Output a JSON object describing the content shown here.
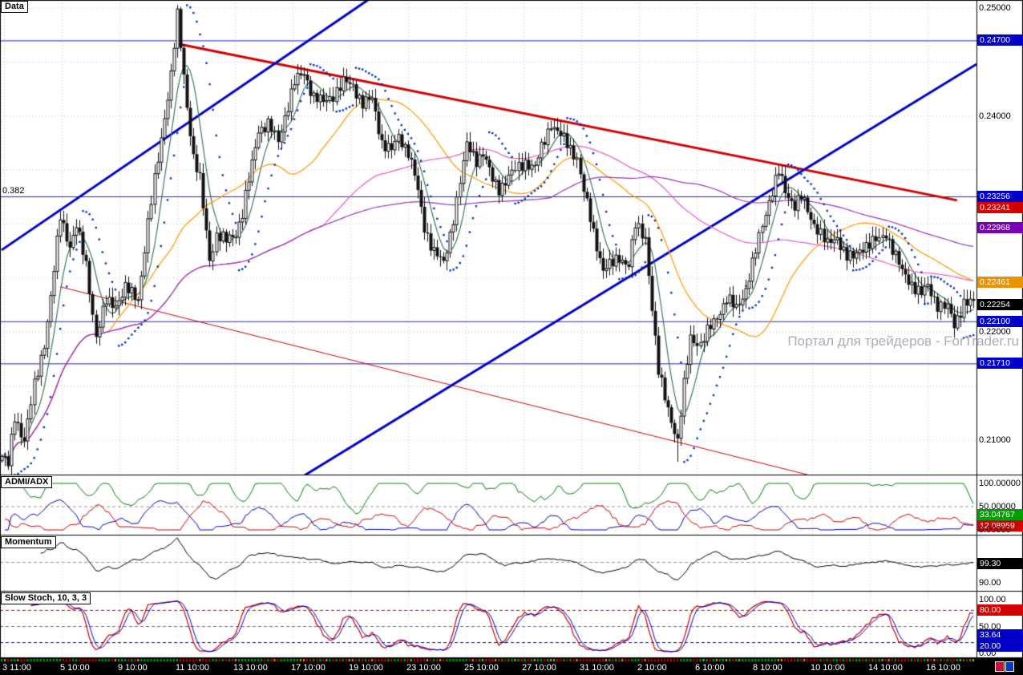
{
  "watermark": "Портал для трейдеров - ForTrader.ru",
  "panels": {
    "main": {
      "title": "Data",
      "fibo_label": "0.382"
    },
    "adx": {
      "title": "ADMI/ADX"
    },
    "momentum": {
      "title": "Momentum"
    },
    "stoch": {
      "title": "Slow Stoch, 10, 3, 3"
    }
  },
  "price_axis": {
    "labels": [
      {
        "text": "0.25000",
        "value": 0.25,
        "style": "plain"
      },
      {
        "text": "0.24700",
        "value": 0.247,
        "style": "box",
        "color": "#0000C8"
      },
      {
        "text": "0.24000",
        "value": 0.24,
        "style": "plain"
      },
      {
        "text": "0.23256",
        "value": 0.23256,
        "style": "box",
        "color": "#0000C8"
      },
      {
        "text": "0.23241",
        "value": 0.23241,
        "style": "box",
        "color": "#D40000"
      },
      {
        "text": "0.22968",
        "value": 0.22968,
        "style": "box",
        "color": "#7A00B4"
      },
      {
        "text": "0.22461",
        "value": 0.22461,
        "style": "box",
        "color": "#E89400"
      },
      {
        "text": "0.22254",
        "value": 0.22254,
        "style": "box",
        "color": "#000000"
      },
      {
        "text": "0.22100",
        "value": 0.221,
        "style": "box",
        "color": "#0000C8"
      },
      {
        "text": "0.22000",
        "value": 0.22,
        "style": "plain"
      },
      {
        "text": "0.21710",
        "value": 0.2171,
        "style": "box",
        "color": "#0000C8"
      },
      {
        "text": "0.21000",
        "value": 0.21,
        "style": "plain"
      }
    ]
  },
  "adx_axis": {
    "labels": [
      {
        "text": "100.00000",
        "value": 100,
        "style": "plain"
      },
      {
        "text": "50.00000",
        "value": 50,
        "style": "plain"
      },
      {
        "text": "33.04767",
        "value": 33.04767,
        "style": "box",
        "color": "#00A000"
      },
      {
        "text": "12.08959",
        "value": 12.08959,
        "style": "box",
        "color": "#D40000"
      },
      {
        "text": "0.00000",
        "value": 0,
        "style": "plain"
      }
    ]
  },
  "momentum_axis": {
    "labels": [
      {
        "text": "99.30",
        "value": 99.3,
        "style": "box",
        "color": "#000000"
      },
      {
        "text": "90.00",
        "value": 90,
        "style": "plain"
      }
    ]
  },
  "stoch_axis": {
    "labels": [
      {
        "text": "100.00",
        "value": 100,
        "style": "plain"
      },
      {
        "text": "80.00",
        "value": 80,
        "style": "box",
        "color": "#D40000"
      },
      {
        "text": "50.00",
        "value": 50,
        "style": "plain"
      },
      {
        "text": "33.64",
        "value": 33.64,
        "style": "box",
        "color": "#0000C8"
      },
      {
        "text": "20.00",
        "value": 20,
        "style": "box",
        "color": "#0000C8"
      },
      {
        "text": "0.00",
        "value": 0,
        "style": "plain"
      }
    ]
  },
  "time_axis": {
    "labels": [
      {
        "text": "3 11:00"
      },
      {
        "text": "5 10:00"
      },
      {
        "text": "9 10:00"
      },
      {
        "text": "11 10:00"
      },
      {
        "text": "13 10:00"
      },
      {
        "text": "17 10:00"
      },
      {
        "text": "19 10:00"
      },
      {
        "text": "23 10:00"
      },
      {
        "text": "25 10:00"
      },
      {
        "text": "27 10:00"
      },
      {
        "text": "31 10:00"
      },
      {
        "text": "2 10:00"
      },
      {
        "text": "6 10:00"
      },
      {
        "text": "8 10:00"
      },
      {
        "text": "10 10:00"
      },
      {
        "text": "14 10:00"
      },
      {
        "text": "16 10:00"
      }
    ]
  },
  "chart_data": {
    "type": "candlestick",
    "title": "Data",
    "num_bars": 300,
    "y_axis": {
      "min": 0.206813,
      "max": 0.250742
    },
    "last_price": 0.22254,
    "grid_prices": [
      0.25,
      0.245,
      0.24,
      0.235,
      0.23,
      0.225,
      0.22,
      0.215,
      0.21
    ],
    "horizontal_levels": [
      {
        "price": 0.247,
        "color": "#2222CC"
      },
      {
        "price": 0.23256,
        "color": "#2222CC",
        "label": "0.382"
      },
      {
        "price": 0.221,
        "color": "#2222CC"
      },
      {
        "price": 0.2171,
        "color": "#2222CC"
      }
    ],
    "trendlines": [
      {
        "name": "descending-resistance",
        "color": "#D40000",
        "width": 3,
        "p1": [
          54,
          0.2467
        ],
        "p2": [
          294,
          0.2322
        ]
      },
      {
        "name": "lower-channel",
        "color": "#D40000",
        "width": 1,
        "p1": [
          18,
          0.2242
        ],
        "p2": [
          248,
          0.2068
        ]
      },
      {
        "name": "ascending-support-left",
        "color": "#0000C8",
        "width": 3,
        "p1": [
          0,
          0.2276
        ],
        "p2": [
          113,
          0.2508
        ]
      },
      {
        "name": "ascending-support-right",
        "color": "#0000C8",
        "width": 3,
        "p1": [
          93,
          0.2067
        ],
        "p2": [
          300,
          0.2448
        ]
      }
    ],
    "moving_averages": [
      {
        "period": 7,
        "color": "#3A7A5A"
      },
      {
        "period": 34,
        "color": "#FF9900"
      },
      {
        "period": 100,
        "color": "#E55CC5"
      },
      {
        "period": 170,
        "color": "#9933BB"
      }
    ],
    "parabolic_sar": {
      "step": 0.02,
      "max": 0.2,
      "color": "#0033CC"
    },
    "spikes": [
      {
        "bar": 54,
        "high": 0.2497
      },
      {
        "bar": 208,
        "low": 0.208
      },
      {
        "bar": 3,
        "low": 0.207
      }
    ],
    "price_path": [
      [
        0,
        0.2085
      ],
      [
        2,
        0.2077
      ],
      [
        4,
        0.2122
      ],
      [
        7,
        0.21
      ],
      [
        10,
        0.215
      ],
      [
        13,
        0.219
      ],
      [
        15,
        0.2232
      ],
      [
        18,
        0.2307
      ],
      [
        21,
        0.228
      ],
      [
        23,
        0.2298
      ],
      [
        26,
        0.2262
      ],
      [
        29,
        0.2196
      ],
      [
        32,
        0.2228
      ],
      [
        35,
        0.2226
      ],
      [
        38,
        0.224
      ],
      [
        42,
        0.2231
      ],
      [
        45,
        0.23
      ],
      [
        48,
        0.236
      ],
      [
        50,
        0.24
      ],
      [
        52,
        0.2438
      ],
      [
        54,
        0.2492
      ],
      [
        55,
        0.2465
      ],
      [
        57,
        0.241
      ],
      [
        59,
        0.2362
      ],
      [
        61,
        0.234
      ],
      [
        64,
        0.2268
      ],
      [
        66,
        0.229
      ],
      [
        69,
        0.2284
      ],
      [
        72,
        0.2292
      ],
      [
        74,
        0.231
      ],
      [
        77,
        0.2355
      ],
      [
        79,
        0.2388
      ],
      [
        82,
        0.2392
      ],
      [
        85,
        0.2376
      ],
      [
        87,
        0.24
      ],
      [
        90,
        0.2431
      ],
      [
        93,
        0.244
      ],
      [
        96,
        0.2418
      ],
      [
        99,
        0.2412
      ],
      [
        102,
        0.242
      ],
      [
        105,
        0.2431
      ],
      [
        108,
        0.2428
      ],
      [
        111,
        0.2412
      ],
      [
        114,
        0.2415
      ],
      [
        117,
        0.2376
      ],
      [
        120,
        0.2368
      ],
      [
        122,
        0.238
      ],
      [
        125,
        0.2368
      ],
      [
        127,
        0.2345
      ],
      [
        130,
        0.2296
      ],
      [
        133,
        0.2276
      ],
      [
        136,
        0.2262
      ],
      [
        138,
        0.229
      ],
      [
        141,
        0.234
      ],
      [
        143,
        0.2372
      ],
      [
        146,
        0.236
      ],
      [
        148,
        0.2366
      ],
      [
        151,
        0.234
      ],
      [
        153,
        0.2333
      ],
      [
        156,
        0.2344
      ],
      [
        159,
        0.2352
      ],
      [
        161,
        0.2358
      ],
      [
        164,
        0.2352
      ],
      [
        166,
        0.237
      ],
      [
        169,
        0.2394
      ],
      [
        171,
        0.2385
      ],
      [
        174,
        0.2374
      ],
      [
        177,
        0.2362
      ],
      [
        179,
        0.233
      ],
      [
        182,
        0.2292
      ],
      [
        185,
        0.2258
      ],
      [
        188,
        0.2263
      ],
      [
        190,
        0.227
      ],
      [
        193,
        0.2262
      ],
      [
        195,
        0.2298
      ],
      [
        198,
        0.2288
      ],
      [
        200,
        0.2222
      ],
      [
        202,
        0.2162
      ],
      [
        205,
        0.213
      ],
      [
        208,
        0.2098
      ],
      [
        210,
        0.215
      ],
      [
        212,
        0.2196
      ],
      [
        215,
        0.2188
      ],
      [
        218,
        0.2205
      ],
      [
        220,
        0.2215
      ],
      [
        223,
        0.223
      ],
      [
        226,
        0.2222
      ],
      [
        229,
        0.224
      ],
      [
        231,
        0.2262
      ],
      [
        234,
        0.23
      ],
      [
        236,
        0.2322
      ],
      [
        239,
        0.2348
      ],
      [
        241,
        0.233
      ],
      [
        244,
        0.2318
      ],
      [
        246,
        0.2325
      ],
      [
        249,
        0.2305
      ],
      [
        252,
        0.2292
      ],
      [
        254,
        0.228
      ],
      [
        257,
        0.2288
      ],
      [
        260,
        0.227
      ],
      [
        262,
        0.2268
      ],
      [
        265,
        0.228
      ],
      [
        267,
        0.2282
      ],
      [
        270,
        0.2285
      ],
      [
        272,
        0.2292
      ],
      [
        275,
        0.227
      ],
      [
        277,
        0.2255
      ],
      [
        280,
        0.2245
      ],
      [
        283,
        0.2235
      ],
      [
        285,
        0.2242
      ],
      [
        288,
        0.2226
      ],
      [
        291,
        0.2222
      ],
      [
        293,
        0.2206
      ],
      [
        296,
        0.2228
      ],
      [
        299,
        0.2226
      ]
    ],
    "indicators": [
      {
        "id": "adx",
        "title": "ADMI/ADX",
        "period": 7,
        "range": [
          0,
          100
        ],
        "lines": [
          {
            "name": "ADX",
            "color": "#008000"
          },
          {
            "name": "plus-DI",
            "color": "#0000CC"
          },
          {
            "name": "minus-DI",
            "color": "#CC0000"
          }
        ],
        "current": {
          "ADX": 33.04767,
          "minus_DI": 12.08959
        },
        "levels": [
          {
            "value": 50,
            "color": "#999999"
          }
        ]
      },
      {
        "id": "momentum",
        "title": "Momentum",
        "period": 12,
        "range": [
          88,
          110
        ],
        "lines": [
          {
            "name": "Momentum",
            "color": "#000000"
          }
        ],
        "current": {
          "Momentum": 99.3
        },
        "levels": [
          {
            "value": 100,
            "color": "#999999"
          }
        ]
      },
      {
        "id": "stoch",
        "title": "Slow Stoch, 10, 3, 3",
        "params": [
          10,
          3,
          3
        ],
        "range": [
          0,
          100
        ],
        "lines": [
          {
            "name": "%K",
            "color": "#CC0000"
          },
          {
            "name": "%D",
            "color": "#0000CC"
          }
        ],
        "current": {
          "percent_D": 33.64
        },
        "levels": [
          {
            "value": 80,
            "color": "#CC0000"
          },
          {
            "value": 50,
            "color": "#6666CC"
          },
          {
            "value": 20,
            "color": "#0000CC"
          }
        ]
      }
    ]
  }
}
